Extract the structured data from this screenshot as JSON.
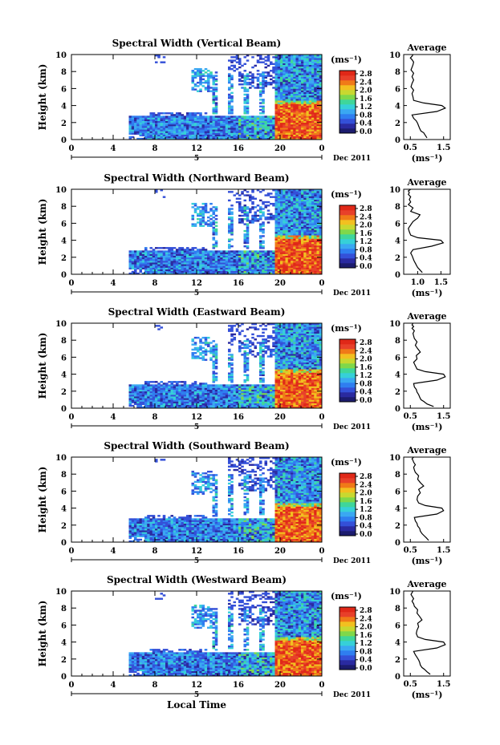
{
  "colors": {
    "colorbar": [
      "#1c1c6e",
      "#2a2aa0",
      "#3450d8",
      "#2f7ef0",
      "#3aa8f2",
      "#36d0d8",
      "#3fd69a",
      "#7fd84a",
      "#c8d830",
      "#f2c020",
      "#f07a18",
      "#e8402a",
      "#e02818"
    ],
    "white_bg": "#ffffff"
  },
  "chart_data": [
    {
      "type": "heatmap",
      "title": "Spectral Width (Vertical Beam)",
      "ylabel": "Height (km)",
      "xlim": [
        0,
        24
      ],
      "ylim": [
        0,
        10
      ],
      "x_ticks": [
        "0",
        "4",
        "8",
        "12",
        "16",
        "20",
        "0"
      ],
      "y_ticks": [
        "0",
        "2",
        "4",
        "6",
        "8",
        "10"
      ],
      "date_markers": [
        "5"
      ],
      "date_label": "Dec 2011",
      "colorbar": {
        "unit": "(ms⁻¹)",
        "ticks": [
          "2.8",
          "2.4",
          "2.0",
          "1.6",
          "1.2",
          "0.8",
          "0.4",
          "0.0"
        ],
        "range": [
          0,
          2.8
        ]
      },
      "profile": {
        "title": "Average",
        "xlabel": "(ms⁻¹)",
        "x_ticks": [
          "0.5",
          "1.5"
        ],
        "xlim": [
          0.3,
          1.7
        ],
        "ylim": [
          0,
          10
        ],
        "y_ticks": [
          "0",
          "2",
          "4",
          "6",
          "8",
          "10"
        ],
        "x": [
          1.0,
          0.95,
          0.9,
          0.82,
          0.78,
          0.75,
          0.72,
          0.68,
          0.6,
          0.55,
          1.3,
          1.55,
          1.45,
          0.9,
          0.6,
          0.58,
          0.55,
          0.6,
          0.52,
          0.55,
          0.6,
          0.55,
          0.6,
          0.52,
          0.55,
          0.58,
          0.6,
          0.55,
          0.5,
          0.55,
          0.58
        ],
        "y": [
          0.2,
          0.5,
          0.8,
          1.0,
          1.3,
          1.6,
          1.9,
          2.2,
          2.5,
          2.9,
          3.3,
          3.7,
          4.0,
          4.3,
          4.6,
          5.0,
          5.4,
          5.8,
          6.2,
          6.6,
          7.0,
          7.4,
          7.8,
          8.2,
          8.5,
          8.8,
          9.1,
          9.4,
          9.6,
          9.8,
          10.0
        ]
      }
    },
    {
      "type": "heatmap",
      "title": "Spectral Width (Northward Beam)",
      "ylabel": "Height (km)",
      "xlim": [
        0,
        24
      ],
      "ylim": [
        0,
        10
      ],
      "x_ticks": [
        "0",
        "4",
        "8",
        "12",
        "16",
        "20",
        "0"
      ],
      "y_ticks": [
        "0",
        "2",
        "4",
        "6",
        "8",
        "10"
      ],
      "date_markers": [
        "5"
      ],
      "date_label": "Dec 2011",
      "colorbar": {
        "unit": "(ms⁻¹)",
        "ticks": [
          "2.8",
          "2.4",
          "2.0",
          "1.6",
          "1.2",
          "0.8",
          "0.4",
          "0.0"
        ],
        "range": [
          0,
          2.8
        ]
      },
      "profile": {
        "title": "Average",
        "xlabel": "(ms⁻¹)",
        "x_ticks": [
          "1.0",
          "1.5"
        ],
        "xlim": [
          0.7,
          1.7
        ],
        "ylim": [
          0,
          10
        ],
        "y_ticks": [
          "0",
          "2",
          "4",
          "6",
          "8",
          "10"
        ],
        "x": [
          1.1,
          1.05,
          1.0,
          0.98,
          0.95,
          0.92,
          0.9,
          0.88,
          0.85,
          0.9,
          1.3,
          1.55,
          1.5,
          1.0,
          0.85,
          0.82,
          0.8,
          0.85,
          0.9,
          1.0,
          1.05,
          0.85,
          0.9,
          0.8,
          0.85,
          0.82,
          0.85,
          0.8,
          0.82,
          0.8,
          0.85
        ],
        "y": [
          0.2,
          0.5,
          0.8,
          1.0,
          1.3,
          1.6,
          1.9,
          2.2,
          2.5,
          2.9,
          3.3,
          3.7,
          4.0,
          4.3,
          4.6,
          5.0,
          5.4,
          5.8,
          6.2,
          6.6,
          7.0,
          7.4,
          7.8,
          8.2,
          8.5,
          8.8,
          9.1,
          9.4,
          9.6,
          9.8,
          10.0
        ]
      }
    },
    {
      "type": "heatmap",
      "title": "Spectral Width (Eastward Beam)",
      "ylabel": "Height (km)",
      "xlim": [
        0,
        24
      ],
      "ylim": [
        0,
        10
      ],
      "x_ticks": [
        "0",
        "4",
        "8",
        "12",
        "16",
        "20",
        "0"
      ],
      "y_ticks": [
        "0",
        "2",
        "4",
        "6",
        "8",
        "10"
      ],
      "date_markers": [
        "5"
      ],
      "date_label": "Dec 2011",
      "colorbar": {
        "unit": "(ms⁻¹)",
        "ticks": [
          "2.8",
          "2.4",
          "2.0",
          "1.6",
          "1.2",
          "0.8",
          "0.4",
          "0.0"
        ],
        "range": [
          0,
          2.8
        ]
      },
      "profile": {
        "title": "Average",
        "xlabel": "(ms⁻¹)",
        "x_ticks": [
          "0.5",
          "1.5"
        ],
        "xlim": [
          0.3,
          1.7
        ],
        "ylim": [
          0,
          10
        ],
        "y_ticks": [
          "0",
          "2",
          "4",
          "6",
          "8",
          "10"
        ],
        "x": [
          1.2,
          1.0,
          0.9,
          0.82,
          0.78,
          0.75,
          0.7,
          0.68,
          0.62,
          0.6,
          1.3,
          1.55,
          1.5,
          0.95,
          0.7,
          0.65,
          0.6,
          0.7,
          0.68,
          0.8,
          0.72,
          0.65,
          0.7,
          0.62,
          0.6,
          0.58,
          0.62,
          0.55,
          0.6,
          0.55,
          0.58
        ],
        "y": [
          0.2,
          0.5,
          0.8,
          1.0,
          1.3,
          1.6,
          1.9,
          2.2,
          2.5,
          2.9,
          3.3,
          3.7,
          4.0,
          4.3,
          4.6,
          5.0,
          5.4,
          5.8,
          6.2,
          6.6,
          7.0,
          7.4,
          7.8,
          8.2,
          8.5,
          8.8,
          9.1,
          9.4,
          9.6,
          9.8,
          10.0
        ]
      }
    },
    {
      "type": "heatmap",
      "title": "Spectral Width (Southward Beam)",
      "ylabel": "Height (km)",
      "xlim": [
        0,
        24
      ],
      "ylim": [
        0,
        10
      ],
      "x_ticks": [
        "0",
        "4",
        "8",
        "12",
        "16",
        "20",
        "0"
      ],
      "y_ticks": [
        "0",
        "2",
        "4",
        "6",
        "8",
        "10"
      ],
      "date_markers": [
        "5"
      ],
      "date_label": "Dec 2011",
      "colorbar": {
        "unit": "(ms⁻¹)",
        "ticks": [
          "2.8",
          "2.4",
          "2.0",
          "1.6",
          "1.2",
          "0.8",
          "0.4",
          "0.0"
        ],
        "range": [
          0,
          2.8
        ]
      },
      "profile": {
        "title": "Average",
        "xlabel": "(ms⁻¹)",
        "x_ticks": [
          "0.5",
          "1.5"
        ],
        "xlim": [
          0.3,
          1.7
        ],
        "ylim": [
          0,
          10
        ],
        "y_ticks": [
          "0",
          "2",
          "4",
          "6",
          "8",
          "10"
        ],
        "x": [
          1.05,
          0.98,
          0.9,
          0.85,
          0.8,
          0.78,
          0.72,
          0.7,
          0.65,
          0.62,
          1.3,
          1.5,
          1.45,
          0.95,
          0.75,
          0.7,
          0.72,
          0.8,
          0.75,
          0.9,
          0.8,
          0.72,
          0.75,
          0.65,
          0.62,
          0.6,
          0.65,
          0.6,
          0.58,
          0.55,
          0.6
        ],
        "y": [
          0.2,
          0.5,
          0.8,
          1.0,
          1.3,
          1.6,
          1.9,
          2.2,
          2.5,
          2.9,
          3.3,
          3.7,
          4.0,
          4.3,
          4.6,
          5.0,
          5.4,
          5.8,
          6.2,
          6.6,
          7.0,
          7.4,
          7.8,
          8.2,
          8.5,
          8.8,
          9.1,
          9.4,
          9.6,
          9.8,
          10.0
        ]
      }
    },
    {
      "type": "heatmap",
      "title": "Spectral Width (Westward Beam)",
      "ylabel": "Height (km)",
      "xlabel": "Local Time",
      "xlim": [
        0,
        24
      ],
      "ylim": [
        0,
        10
      ],
      "x_ticks": [
        "0",
        "4",
        "8",
        "12",
        "16",
        "20",
        "0"
      ],
      "y_ticks": [
        "0",
        "2",
        "4",
        "6",
        "8",
        "10"
      ],
      "date_markers": [
        "5"
      ],
      "date_label": "Dec 2011",
      "colorbar": {
        "unit": "(ms⁻¹)",
        "ticks": [
          "2.8",
          "2.4",
          "2.0",
          "1.6",
          "1.2",
          "0.8",
          "0.4",
          "0.0"
        ],
        "range": [
          0,
          2.8
        ]
      },
      "profile": {
        "title": "Average",
        "xlabel": "(ms⁻¹)",
        "x_ticks": [
          "0.5",
          "1.5"
        ],
        "xlim": [
          0.3,
          1.7
        ],
        "ylim": [
          0,
          10
        ],
        "y_ticks": [
          "0",
          "2",
          "4",
          "6",
          "8",
          "10"
        ],
        "x": [
          1.1,
          1.0,
          0.92,
          0.85,
          0.8,
          0.78,
          0.75,
          0.7,
          0.65,
          0.6,
          1.3,
          1.55,
          1.5,
          0.95,
          0.72,
          0.68,
          0.7,
          0.75,
          0.72,
          0.85,
          0.78,
          0.7,
          0.72,
          0.62,
          0.6,
          0.55,
          0.6,
          0.55,
          0.52,
          0.55,
          0.58
        ],
        "y": [
          0.2,
          0.5,
          0.8,
          1.0,
          1.3,
          1.6,
          1.9,
          2.2,
          2.5,
          2.9,
          3.3,
          3.7,
          4.0,
          4.3,
          4.6,
          5.0,
          5.4,
          5.8,
          6.2,
          6.6,
          7.0,
          7.4,
          7.8,
          8.2,
          8.5,
          8.8,
          9.1,
          9.4,
          9.6,
          9.8,
          10.0
        ]
      }
    }
  ]
}
